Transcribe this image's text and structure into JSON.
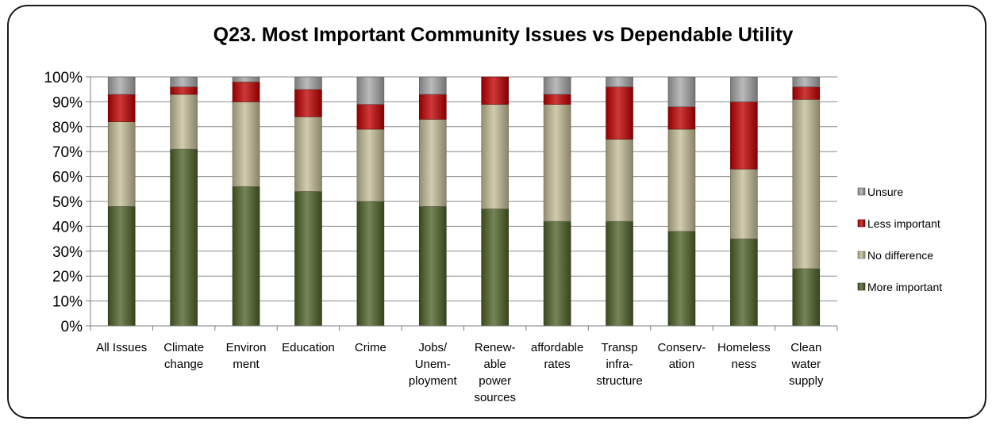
{
  "chart_data": {
    "type": "bar",
    "stacked": true,
    "title": "Q23. Most Important Community Issues vs Dependable Utility",
    "xlabel": "",
    "ylabel": "",
    "ylim": [
      0,
      100
    ],
    "y_ticks": [
      "0%",
      "10%",
      "20%",
      "30%",
      "40%",
      "50%",
      "60%",
      "70%",
      "80%",
      "90%",
      "100%"
    ],
    "grid": true,
    "legend_position": "right",
    "categories": [
      [
        "All Issues"
      ],
      [
        "Climate",
        "change"
      ],
      [
        "Environ",
        "ment"
      ],
      [
        "Education"
      ],
      [
        "Crime"
      ],
      [
        "Jobs/",
        "Unem-",
        "ployment"
      ],
      [
        "Renew-",
        "able",
        "power",
        "sources"
      ],
      [
        "affordable",
        "rates"
      ],
      [
        "Transp",
        "infra-",
        "structure"
      ],
      [
        "Conserv-",
        "ation"
      ],
      [
        "Homeless",
        "ness"
      ],
      [
        "Clean",
        "water",
        "supply"
      ]
    ],
    "series": [
      {
        "name": "More important",
        "color": "#4f6228",
        "values": [
          48,
          71,
          56,
          54,
          50,
          48,
          47,
          42,
          42,
          38,
          35,
          23
        ]
      },
      {
        "name": "No difference",
        "color": "#c4bd97",
        "values": [
          34,
          22,
          34,
          30,
          29,
          35,
          42,
          47,
          33,
          41,
          28,
          68
        ]
      },
      {
        "name": "Less important",
        "color": "#c00000",
        "values": [
          11,
          3,
          8,
          11,
          10,
          10,
          11,
          4,
          21,
          9,
          27,
          5
        ]
      },
      {
        "name": "Unsure",
        "color": "#a6a6a6",
        "values": [
          7,
          4,
          2,
          5,
          11,
          7,
          0,
          7,
          4,
          12,
          10,
          4
        ]
      }
    ]
  }
}
